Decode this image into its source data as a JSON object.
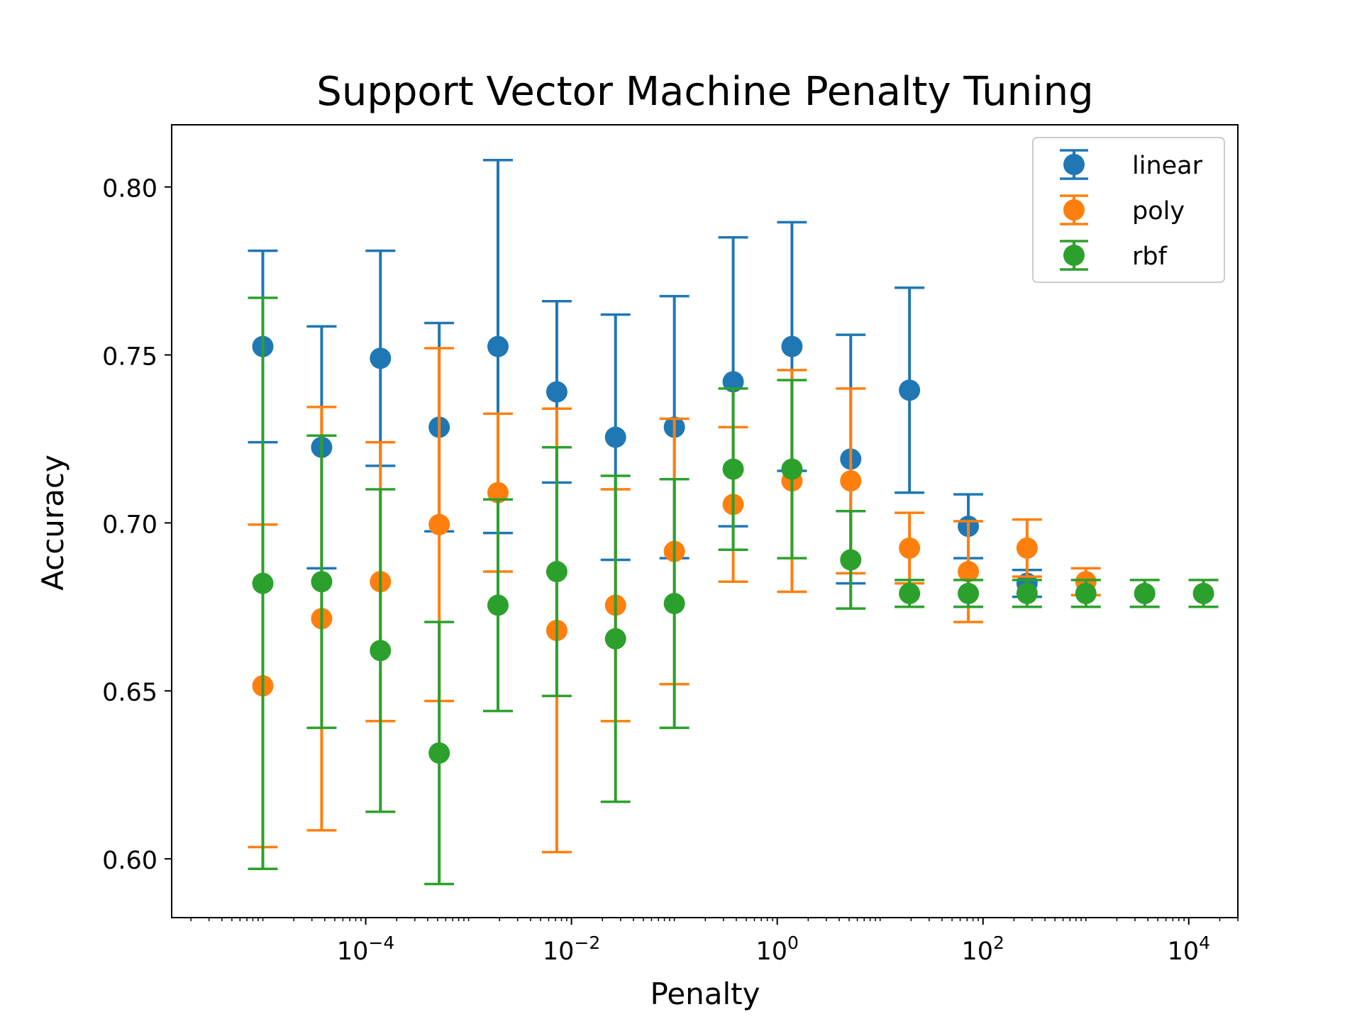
{
  "chart_data": {
    "type": "scatter",
    "title": "Support Vector Machine Penalty Tuning",
    "xlabel": "Penalty",
    "ylabel": "Accuracy",
    "x_scale": "log",
    "xlim": [
      1.3e-06,
      30000
    ],
    "ylim": [
      0.5825,
      0.8185
    ],
    "grid": false,
    "legend_position": "top-right",
    "x_ticks": [
      {
        "base": "10",
        "exp": "−4",
        "value": 0.0001
      },
      {
        "base": "10",
        "exp": "−2",
        "value": 0.01
      },
      {
        "base": "10",
        "exp": "0",
        "value": 1
      },
      {
        "base": "10",
        "exp": "2",
        "value": 100
      },
      {
        "base": "10",
        "exp": "4",
        "value": 10000
      }
    ],
    "y_ticks": [
      {
        "label": "0.60",
        "value": 0.6
      },
      {
        "label": "0.65",
        "value": 0.65
      },
      {
        "label": "0.70",
        "value": 0.7
      },
      {
        "label": "0.75",
        "value": 0.75
      },
      {
        "label": "0.80",
        "value": 0.8
      }
    ],
    "series": [
      {
        "name": "linear",
        "color": "#1f77b4",
        "x": [
          1e-05,
          3.73e-05,
          0.000139,
          0.000518,
          0.00193,
          0.0072,
          0.0268,
          0.1,
          0.373,
          1.39,
          5.18,
          19.3,
          72,
          268
        ],
        "y": [
          0.7525,
          0.7225,
          0.749,
          0.7285,
          0.7525,
          0.739,
          0.7255,
          0.7285,
          0.742,
          0.7525,
          0.719,
          0.7395,
          0.699,
          0.682
        ],
        "yerr": [
          0.0285,
          0.036,
          0.032,
          0.031,
          0.0555,
          0.027,
          0.0365,
          0.039,
          0.043,
          0.037,
          0.037,
          0.0305,
          0.0095,
          0.004
        ]
      },
      {
        "name": "poly",
        "color": "#ff7f0e",
        "x": [
          1e-05,
          3.73e-05,
          0.000139,
          0.000518,
          0.00193,
          0.0072,
          0.0268,
          0.1,
          0.373,
          1.39,
          5.18,
          19.3,
          72,
          268,
          1000
        ],
        "y": [
          0.6515,
          0.6715,
          0.6825,
          0.6995,
          0.709,
          0.668,
          0.6755,
          0.6915,
          0.7055,
          0.7125,
          0.7125,
          0.6925,
          0.6855,
          0.6925,
          0.6825
        ],
        "yerr": [
          0.048,
          0.063,
          0.0415,
          0.0525,
          0.0235,
          0.066,
          0.0345,
          0.0395,
          0.023,
          0.033,
          0.0275,
          0.0105,
          0.015,
          0.0085,
          0.004
        ]
      },
      {
        "name": "rbf",
        "color": "#2ca02c",
        "x": [
          1e-05,
          3.73e-05,
          0.000139,
          0.000518,
          0.00193,
          0.0072,
          0.0268,
          0.1,
          0.373,
          1.39,
          5.18,
          19.3,
          72,
          268,
          1000,
          3730,
          13900
        ],
        "y": [
          0.682,
          0.6825,
          0.662,
          0.6315,
          0.6755,
          0.6855,
          0.6655,
          0.676,
          0.716,
          0.716,
          0.689,
          0.679,
          0.679,
          0.679,
          0.679,
          0.679,
          0.679
        ],
        "yerr": [
          0.085,
          0.0435,
          0.048,
          0.039,
          0.0315,
          0.037,
          0.0485,
          0.037,
          0.024,
          0.0265,
          0.0145,
          0.004,
          0.004,
          0.004,
          0.004,
          0.004,
          0.004
        ]
      }
    ]
  }
}
